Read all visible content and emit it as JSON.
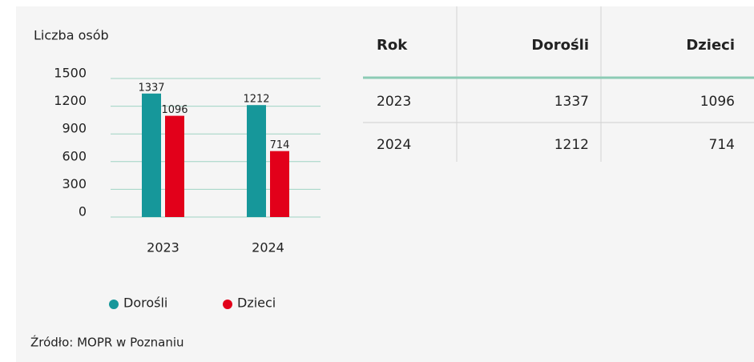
{
  "chart_data": {
    "type": "bar",
    "title": "Liczba osób",
    "categories": [
      "2023",
      "2024"
    ],
    "series": [
      {
        "name": "Dorośli",
        "color": "#16979a",
        "values": [
          1337,
          1212
        ]
      },
      {
        "name": "Dzieci",
        "color": "#e2001a",
        "values": [
          1096,
          714
        ]
      }
    ],
    "ylim": [
      0,
      1500
    ],
    "yticks": [
      0,
      300,
      600,
      900,
      1200,
      1500
    ],
    "grid": true,
    "legend": "bottom"
  },
  "table": {
    "header": [
      "Rok",
      "Dorośli",
      "Dzieci"
    ],
    "rows": [
      [
        "2023",
        1337,
        1096
      ],
      [
        "2024",
        1212,
        714
      ]
    ]
  },
  "source": "Źródło: MOPR w Poznaniu"
}
